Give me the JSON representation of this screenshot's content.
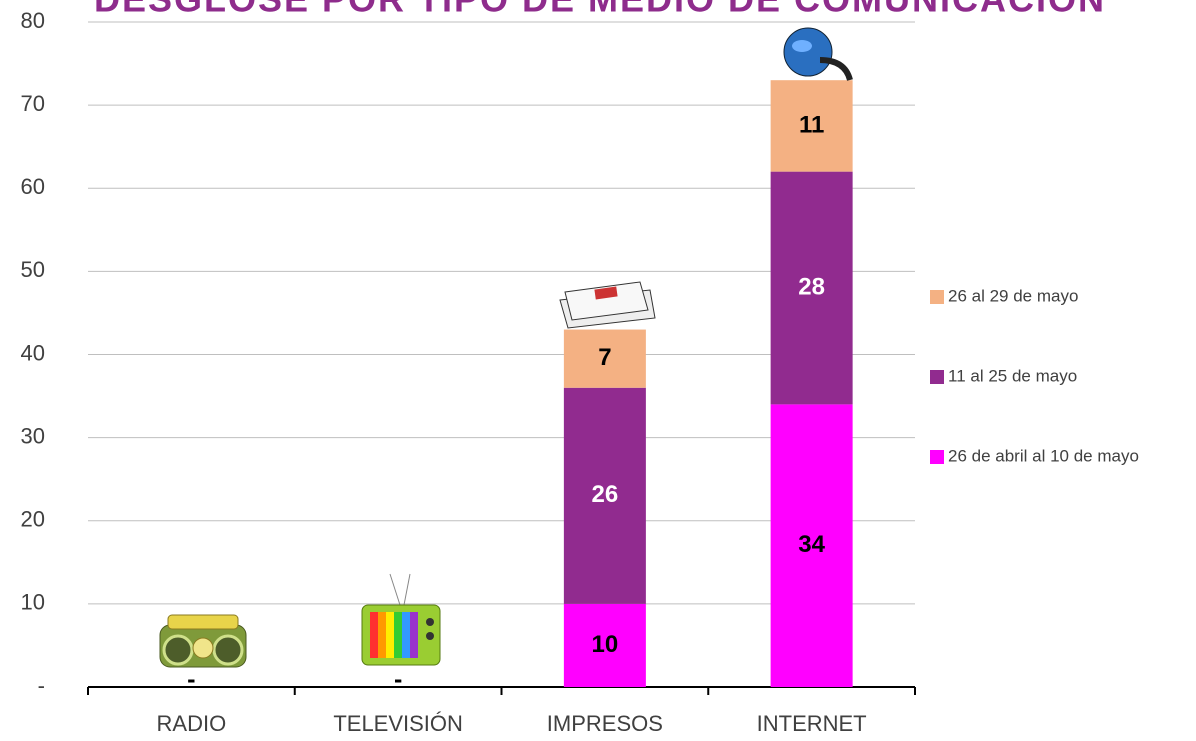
{
  "chart_data": {
    "type": "stacked_bar",
    "title": "DESGLOSE POR TIPO DE MEDIO DE COMUNICACIÓN",
    "categories": [
      "RADIO",
      "TELEVISIÓN",
      "IMPRESOS",
      "INTERNET"
    ],
    "series": [
      {
        "name": "26 de abril al 10 de mayo",
        "color": "#ff00ff",
        "values": [
          0,
          0,
          10,
          34
        ],
        "value_labels": [
          "-",
          "-",
          "10",
          "34"
        ],
        "label_color": "#000000"
      },
      {
        "name": "11 al 25 de mayo",
        "color": "#912b8f",
        "values": [
          0,
          0,
          26,
          28
        ],
        "value_labels": [
          "-",
          "-",
          "26",
          "28"
        ],
        "label_color": "#ffffff"
      },
      {
        "name": "26 al 29 de mayo",
        "color": "#f4b183",
        "values": [
          0,
          0,
          7,
          11
        ],
        "value_labels": [
          "-",
          "-",
          "7",
          "11"
        ],
        "label_color": "#000000"
      }
    ],
    "ylim": [
      0,
      80
    ],
    "yticks": [
      {
        "value": 0,
        "label": "-"
      },
      10,
      20,
      30,
      40,
      50,
      60,
      70,
      80
    ],
    "grid": true,
    "legend": "right"
  }
}
